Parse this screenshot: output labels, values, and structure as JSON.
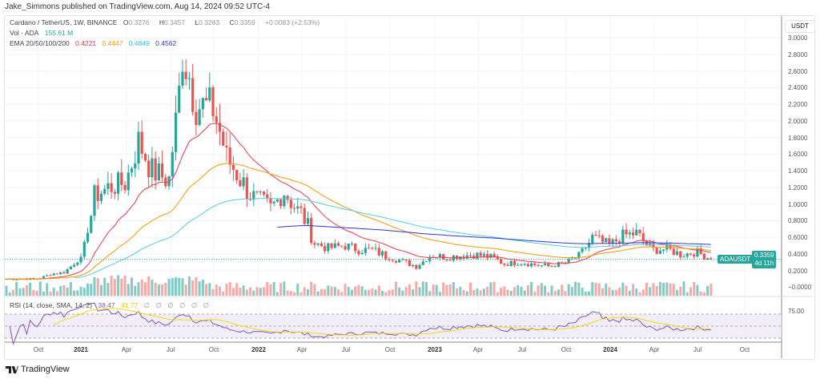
{
  "publisher_line": "Jake_Simmons published on TradingView.com, Aug 14, 2024 09:52 UTC-4",
  "legend": {
    "symbol": "Cardano / TetherUS, 1W, BINANCE",
    "o_label": "O",
    "o": "0.3276",
    "h_label": "H",
    "h": "0.3457",
    "l_label": "L",
    "l": "0.3263",
    "c_label": "C",
    "c": "0.3359",
    "change": "+0.0083 (+2.53%)",
    "vol_label": "Vol · ADA",
    "vol": "155.61 M",
    "ema_label": "EMA 20/50/100/200",
    "ema20": "0.4221",
    "ema50": "0.4447",
    "ema100": "0.4849",
    "ema200": "0.4562",
    "rsi_label": "RSI (14, close, SMA, 14, 2)",
    "rsi": "38.47",
    "rsi_sma": "41.77",
    "rsi_na": [
      "∅",
      "∅",
      "∅",
      "∅",
      "∅",
      "∅"
    ]
  },
  "colors": {
    "up": "#26a69a",
    "down": "#ef5350",
    "ema20": "#f23645",
    "ema50": "#ff9800",
    "ema100": "#4dd0e1",
    "ema200": "#2f33d6",
    "rsi": "#7e57c2",
    "rsi_sma": "#f5d90a"
  },
  "price_axis": {
    "currency": "USDT",
    "ticks": [
      "3.0000",
      "2.8000",
      "2.6000",
      "2.4000",
      "2.2000",
      "2.0000",
      "1.8000",
      "1.6000",
      "1.4000",
      "1.2000",
      "1.0000",
      "0.8000",
      "0.6000",
      "0.4000",
      "0.2000"
    ],
    "volume_tick": "−0.0000",
    "rsi_tick": "75.00"
  },
  "last_price": {
    "symbol": "ADAUSDT",
    "price": "0.3359",
    "countdown": "4d 11h"
  },
  "time_axis": [
    {
      "label": "Oct",
      "bold": false
    },
    {
      "label": "2021",
      "bold": true
    },
    {
      "label": "Apr",
      "bold": false
    },
    {
      "label": "Jul",
      "bold": false
    },
    {
      "label": "Oct",
      "bold": false
    },
    {
      "label": "2022",
      "bold": true
    },
    {
      "label": "Apr",
      "bold": false
    },
    {
      "label": "Jul",
      "bold": false
    },
    {
      "label": "Oct",
      "bold": false
    },
    {
      "label": "2023",
      "bold": true
    },
    {
      "label": "Apr",
      "bold": false
    },
    {
      "label": "Jul",
      "bold": false
    },
    {
      "label": "Oct",
      "bold": false
    },
    {
      "label": "2024",
      "bold": true
    },
    {
      "label": "Apr",
      "bold": false
    },
    {
      "label": "Jul",
      "bold": false
    },
    {
      "label": "Oct",
      "bold": false
    }
  ],
  "brand": "TradingView",
  "chart_data": {
    "type": "candlestick",
    "interval": "1W",
    "y_range": [
      0,
      3.0
    ],
    "grid": true,
    "monthly_close_approx": {
      "months": [
        "2020-08",
        "2020-09",
        "2020-10",
        "2020-11",
        "2020-12",
        "2021-01",
        "2021-02",
        "2021-03",
        "2021-04",
        "2021-05",
        "2021-06",
        "2021-07",
        "2021-08",
        "2021-09",
        "2021-10",
        "2021-11",
        "2021-12",
        "2022-01",
        "2022-02",
        "2022-03",
        "2022-04",
        "2022-05",
        "2022-06",
        "2022-07",
        "2022-08",
        "2022-09",
        "2022-10",
        "2022-11",
        "2022-12",
        "2023-01",
        "2023-02",
        "2023-03",
        "2023-04",
        "2023-05",
        "2023-06",
        "2023-07",
        "2023-08",
        "2023-09",
        "2023-10",
        "2023-11",
        "2023-12",
        "2024-01",
        "2024-02",
        "2024-03",
        "2024-04",
        "2024-05",
        "2024-06",
        "2024-07",
        "2024-08"
      ],
      "close": [
        0.1,
        0.1,
        0.1,
        0.16,
        0.18,
        0.33,
        1.1,
        1.2,
        1.25,
        1.75,
        1.4,
        1.3,
        2.85,
        2.2,
        2.15,
        1.55,
        1.3,
        1.05,
        0.95,
        1.15,
        0.9,
        0.53,
        0.47,
        0.5,
        0.45,
        0.45,
        0.37,
        0.31,
        0.25,
        0.38,
        0.36,
        0.38,
        0.39,
        0.36,
        0.28,
        0.3,
        0.27,
        0.25,
        0.29,
        0.38,
        0.6,
        0.51,
        0.62,
        0.65,
        0.45,
        0.46,
        0.39,
        0.42,
        0.3359
      ]
    }
  }
}
